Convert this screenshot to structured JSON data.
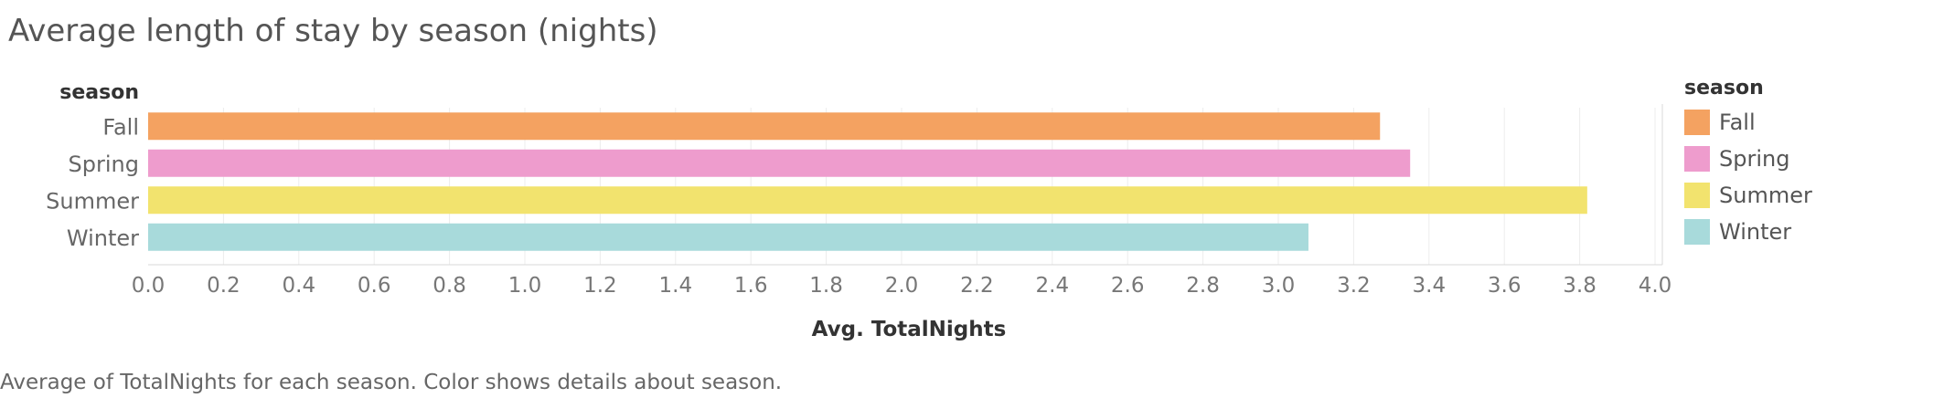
{
  "title": "Average length of stay by season (nights)",
  "caption": "Average of TotalNights for each season.  Color shows details about season.",
  "chart_data": {
    "type": "bar",
    "orientation": "horizontal",
    "row_header": "season",
    "categories": [
      "Fall",
      "Spring",
      "Summer",
      "Winter"
    ],
    "values": [
      3.27,
      3.35,
      3.82,
      3.08
    ],
    "colors": [
      "#f4a261",
      "#ee9ccd",
      "#f2e36e",
      "#a8dadb"
    ],
    "xlabel": "Avg. TotalNights",
    "xlim": [
      0.0,
      4.0
    ],
    "xticks": [
      "0.0",
      "0.2",
      "0.4",
      "0.6",
      "0.8",
      "1.0",
      "1.2",
      "1.4",
      "1.6",
      "1.8",
      "2.0",
      "2.2",
      "2.4",
      "2.6",
      "2.8",
      "3.0",
      "3.2",
      "3.4",
      "3.6",
      "3.8",
      "4.0"
    ],
    "grid": "vertical",
    "legend": {
      "title": "season",
      "placement": "right",
      "items": [
        "Fall",
        "Spring",
        "Summer",
        "Winter"
      ]
    }
  }
}
